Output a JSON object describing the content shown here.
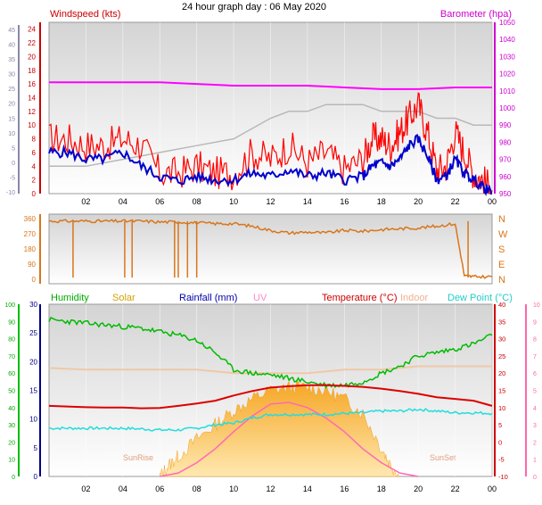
{
  "header": {
    "title": "24 hour graph day : 06 May 2020",
    "windspeed_label": "Windspeed (kts)",
    "barometer_label": "Barometer (hpa)"
  },
  "legend": {
    "humidity": "Humidity",
    "solar": "Solar",
    "rainfall": "Rainfall (mm)",
    "uv": "UV",
    "temperature": "Temperature (°C)",
    "indoor": "Indoor",
    "dewpoint": "Dew Point (°C)"
  },
  "annotations": {
    "sunrise": "SunRise",
    "sunset": "SunSet"
  },
  "colors": {
    "wind_gust": "#ff0000",
    "wind_avg": "#0000cc",
    "barometer": "#ff00ff",
    "baro_prev": "#b8b8b8",
    "wind_dir": "#d9761a",
    "humidity": "#00bb00",
    "solar": "#f5b842",
    "rainfall": "#0000aa",
    "uv": "#ff69b4",
    "temperature": "#dd0000",
    "indoor": "#f0c8a8",
    "dewpoint": "#22dddd",
    "soil": "#aaaaff"
  },
  "chart_data": [
    {
      "type": "line",
      "title": "24 hour graph day : 06 May 2020",
      "xlabel": "",
      "x_ticks": [
        "02",
        "04",
        "06",
        "08",
        "10",
        "12",
        "14",
        "16",
        "18",
        "20",
        "22",
        "00"
      ],
      "y_left_label": "Windspeed (kts)",
      "y_left_ticks": [
        0,
        2,
        4,
        6,
        8,
        10,
        12,
        14,
        16,
        18,
        20,
        22,
        24
      ],
      "y_left_outer_ticks": [
        -10,
        -5,
        0,
        5,
        10,
        15,
        20,
        25,
        30,
        35,
        40,
        45
      ],
      "y_right_label": "Barometer (hpa)",
      "y_right_ticks": [
        950,
        960,
        970,
        980,
        990,
        1000,
        1010,
        1020,
        1030,
        1040,
        1050
      ],
      "ylim_left": [
        0,
        25
      ],
      "ylim_right": [
        950,
        1050
      ],
      "series": [
        {
          "name": "Windspeed (kts)",
          "hour": [
            0,
            1,
            2,
            3,
            4,
            5,
            6,
            7,
            8,
            9,
            10,
            11,
            12,
            13,
            14,
            15,
            16,
            17,
            17.5,
            18,
            18.5,
            19,
            19.5,
            20,
            20.5,
            21,
            21.5,
            22,
            22.5,
            23,
            23.5,
            24
          ],
          "values": [
            6,
            6,
            5,
            5,
            6,
            4,
            2.5,
            1.8,
            2.5,
            2,
            2,
            3,
            2.5,
            3.5,
            2.5,
            3,
            2,
            2.5,
            4,
            4.5,
            4,
            5,
            7,
            8,
            5.5,
            2,
            2.5,
            5,
            3,
            2,
            1,
            0
          ]
        },
        {
          "name": "Gust",
          "hour": [
            0,
            1,
            2,
            3,
            4,
            5,
            6,
            7,
            8,
            9,
            10,
            11,
            12,
            13,
            14,
            15,
            16,
            17,
            17.5,
            18,
            18.5,
            19,
            19.5,
            20,
            20.5,
            21,
            21.5,
            22,
            22.5,
            23,
            23.5,
            24
          ],
          "values": [
            8,
            8,
            7,
            7,
            8,
            7,
            3,
            3,
            4,
            3,
            3,
            6,
            5,
            7,
            4.5,
            6,
            3.5,
            5,
            8,
            8,
            7,
            9,
            11,
            13,
            9,
            3.5,
            4,
            9,
            6,
            3,
            2,
            0.5
          ]
        },
        {
          "name": "Barometer (hpa)",
          "hour": [
            0,
            2,
            4,
            6,
            8,
            10,
            12,
            14,
            16,
            18,
            19,
            20,
            22,
            24
          ],
          "values": [
            1015,
            1015,
            1015,
            1015,
            1014,
            1013,
            1013,
            1013,
            1012,
            1011,
            1011,
            1011,
            1012,
            1012
          ]
        },
        {
          "name": "",
          "hour": [
            0,
            2,
            4,
            6,
            8,
            10,
            12,
            13,
            14,
            15,
            16,
            17,
            18,
            19,
            20,
            21,
            22,
            23,
            24
          ],
          "values": [
            4,
            4,
            5,
            6,
            7,
            8,
            11,
            12,
            12,
            13,
            13,
            13,
            12,
            12,
            12,
            11,
            11,
            10,
            10
          ]
        }
      ]
    },
    {
      "type": "scatter",
      "title": "",
      "y_left_ticks": [
        0,
        90,
        180,
        270,
        360
      ],
      "y_right_labels": [
        "N",
        "W",
        "S",
        "E",
        "N"
      ],
      "ylim": [
        0,
        360
      ],
      "series": [
        {
          "name": "Wind direction",
          "hour": [
            0,
            1,
            2,
            3,
            4,
            5,
            6,
            7,
            8,
            9,
            10,
            11,
            12,
            13,
            14,
            15,
            16,
            17,
            18,
            19,
            20,
            21,
            22,
            22.5,
            23,
            24
          ],
          "values": [
            345,
            345,
            345,
            345,
            345,
            345,
            340,
            340,
            335,
            330,
            330,
            315,
            290,
            275,
            280,
            275,
            290,
            285,
            295,
            300,
            305,
            315,
            330,
            20,
            15,
            15
          ]
        }
      ]
    },
    {
      "type": "line",
      "title": "",
      "x_ticks": [
        "02",
        "04",
        "06",
        "08",
        "10",
        "12",
        "14",
        "16",
        "18",
        "20",
        "22",
        "00"
      ],
      "y_left_outer_ticks": [
        0,
        10,
        20,
        30,
        40,
        50,
        60,
        70,
        80,
        90,
        100
      ],
      "y_left_ticks": [
        0,
        5,
        10,
        15,
        20,
        25,
        30
      ],
      "y_right_ticks": [
        -10,
        -5,
        0,
        5,
        10,
        15,
        20,
        25,
        30,
        35,
        40
      ],
      "y_right_outer_ticks": [
        0,
        1,
        2,
        3,
        4,
        5,
        6,
        7,
        8,
        9,
        10
      ],
      "ylim_temp": [
        -10,
        40
      ],
      "ylim_humidity": [
        0,
        100
      ],
      "ylim_solar_scale": [
        0,
        30
      ],
      "series": [
        {
          "name": "Humidity",
          "hour": [
            0,
            1,
            2,
            3,
            4,
            5,
            6,
            7,
            8,
            9,
            10,
            11,
            12,
            13,
            14,
            15,
            16,
            17,
            18,
            19,
            20,
            21,
            22,
            23,
            24
          ],
          "values": [
            91,
            90,
            89,
            88,
            87,
            86,
            84,
            82,
            79,
            72,
            62,
            60,
            59,
            57,
            55,
            53,
            53,
            55,
            60,
            64,
            70,
            72,
            74,
            77,
            82
          ]
        },
        {
          "name": "Solar",
          "hour": [
            6,
            6.5,
            7,
            8,
            9,
            10,
            11,
            12,
            13,
            14,
            15,
            16,
            17,
            18,
            18.5,
            19
          ],
          "values": [
            0,
            2,
            3.5,
            6.5,
            9,
            11.5,
            13.5,
            15,
            15.5,
            15.5,
            15,
            13.5,
            11,
            5,
            2,
            0
          ]
        },
        {
          "name": "Temperature (°C)",
          "hour": [
            0,
            1,
            2,
            3,
            4,
            5,
            6,
            7,
            8,
            9,
            10,
            11,
            12,
            13,
            14,
            15,
            16,
            17,
            18,
            19,
            20,
            21,
            22,
            23,
            24
          ],
          "values": [
            10.5,
            10.3,
            10.1,
            10,
            10,
            9.8,
            9.9,
            10.5,
            11.2,
            12,
            13.5,
            14.8,
            15.8,
            16.2,
            16.5,
            16.5,
            16.3,
            16,
            15.5,
            14.8,
            14,
            13,
            12.5,
            12,
            10.5
          ]
        },
        {
          "name": "Indoor",
          "hour": [
            0,
            2,
            4,
            6,
            8,
            10,
            12,
            14,
            16,
            18,
            20,
            22,
            24
          ],
          "values": [
            21.5,
            21,
            21,
            21,
            21,
            20,
            20,
            20,
            21,
            21,
            22,
            22,
            22
          ]
        },
        {
          "name": "Dew Point (°C)",
          "hour": [
            0,
            1,
            2,
            3,
            4,
            5,
            6,
            7,
            8,
            9,
            10,
            11,
            12,
            13,
            14,
            15,
            16,
            17,
            18,
            19,
            20,
            21,
            22,
            23,
            24
          ],
          "values": [
            4,
            4,
            4,
            4,
            4,
            3.8,
            3.5,
            3.5,
            4,
            5,
            5.5,
            7,
            8,
            8,
            8,
            8,
            8.3,
            8.5,
            9,
            9,
            9.5,
            9,
            8.5,
            8.5,
            8.3
          ]
        },
        {
          "name": "UV",
          "hour": [
            6,
            7,
            8,
            9,
            10,
            11,
            12,
            13,
            14,
            15,
            16,
            17,
            18,
            19,
            20
          ],
          "values": [
            0,
            0.2,
            0.8,
            1.6,
            2.6,
            3.5,
            4.2,
            4.3,
            4,
            3.4,
            2.6,
            1.6,
            0.8,
            0.2,
            0
          ]
        }
      ]
    }
  ]
}
